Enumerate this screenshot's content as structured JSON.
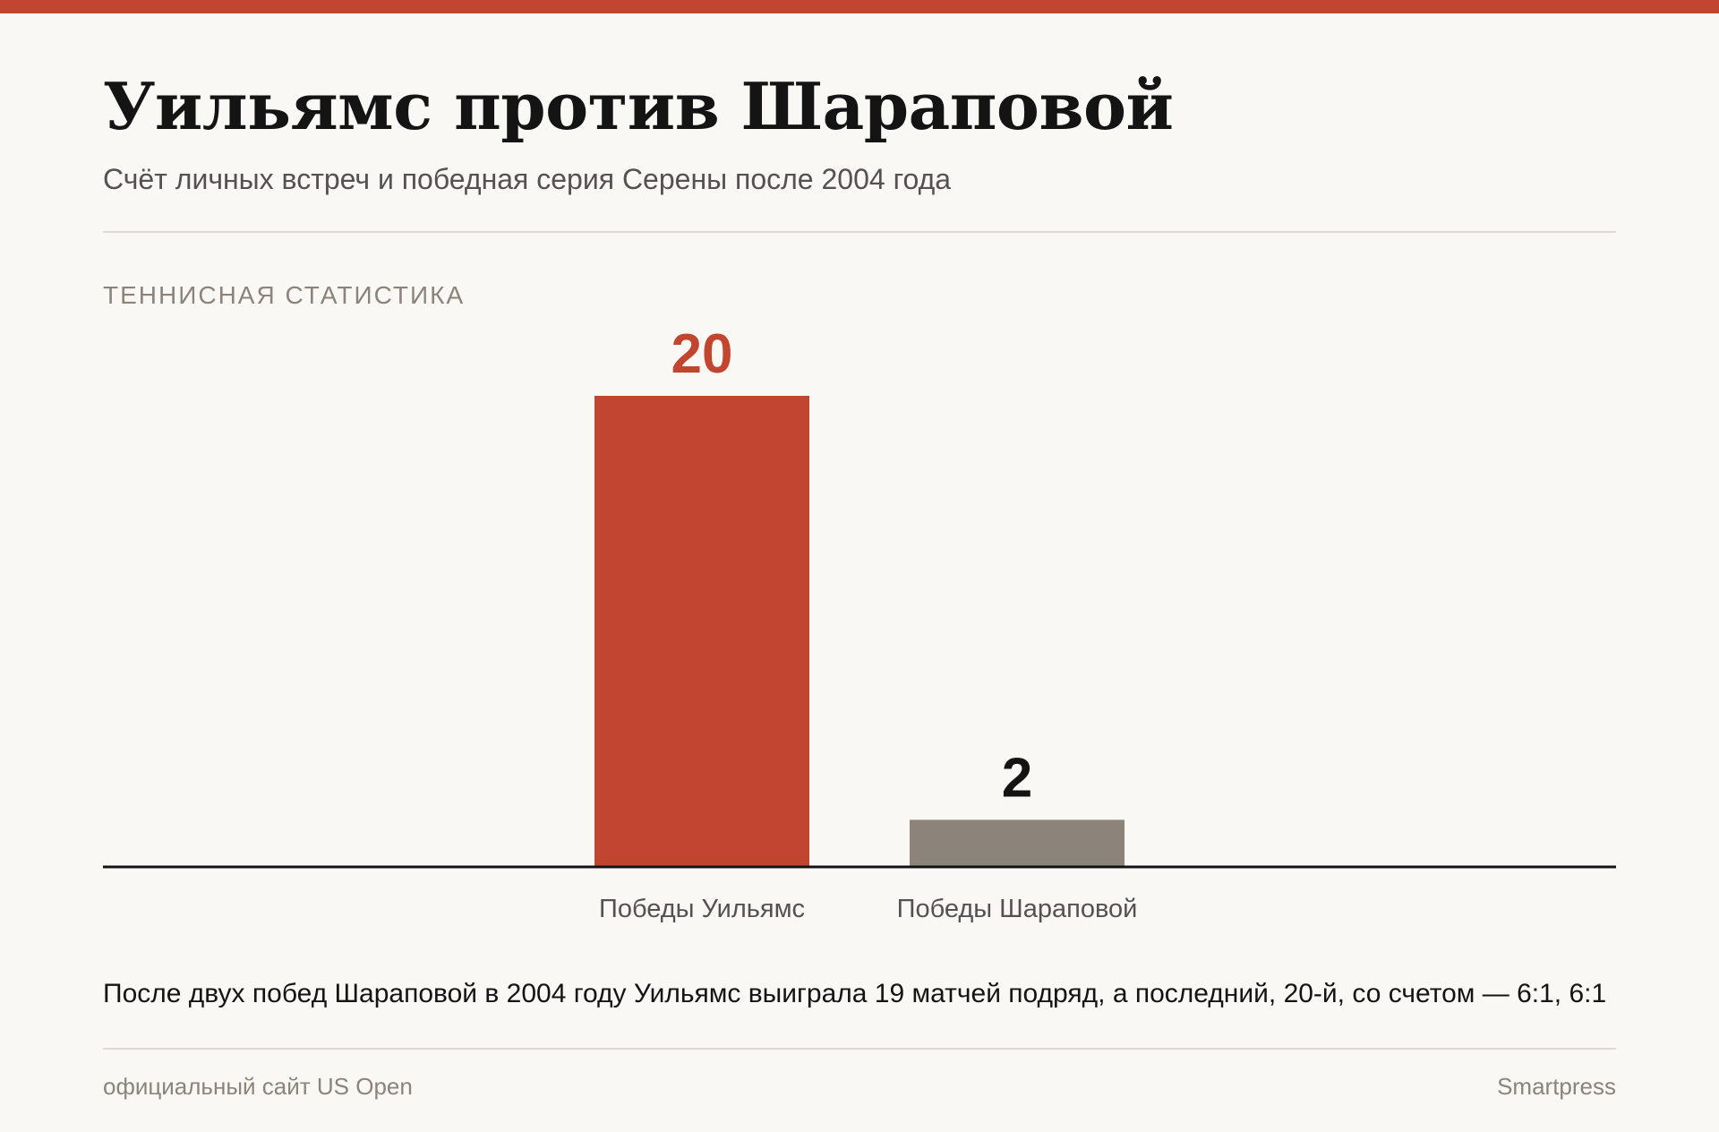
{
  "header": {
    "title": "Уильямс против Шараповой",
    "subtitle": "Счёт личных встреч и победная серия Серены после 2004 года"
  },
  "section_label": "ТЕННИСНАЯ СТАТИСТИКА",
  "chart_data": {
    "type": "bar",
    "categories": [
      "Победы Уильямс",
      "Победы Шараповой"
    ],
    "values": [
      20,
      2
    ],
    "bar_colors": [
      "#c24530",
      "#8c837b"
    ],
    "value_label_colors": [
      "#c24530",
      "#141414"
    ],
    "ylim": [
      0,
      20
    ],
    "grid": false
  },
  "footer": {
    "note": "После двух побед Шараповой в 2004 году Уильямс выиграла 19 матчей подряд, а последний, 20-й, со счетом — 6:1, 6:1",
    "source": "официальный сайт US Open",
    "credit": "Smartpress"
  },
  "colors": {
    "accent": "#c24530",
    "neutral": "#8c837b",
    "text": "#141414",
    "background": "#faf8f5"
  }
}
